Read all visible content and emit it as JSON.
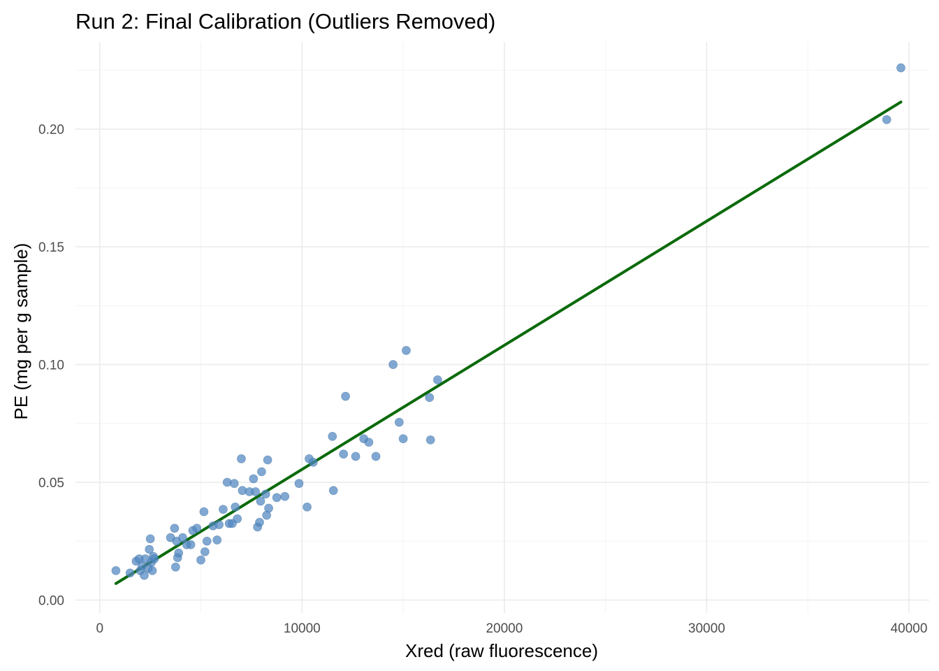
{
  "chart_data": {
    "type": "scatter",
    "title": "Run 2: Final Calibration (Outliers Removed)",
    "xlabel": "Xred (raw fluorescence)",
    "ylabel": "PE (mg per g sample)",
    "xlim": [
      -1200,
      41000
    ],
    "ylim": [
      -0.0055,
      0.237
    ],
    "x_ticks": [
      0,
      10000,
      20000,
      30000,
      40000
    ],
    "x_tick_labels": [
      "0",
      "10000",
      "20000",
      "30000",
      "40000"
    ],
    "y_ticks": [
      0.0,
      0.05,
      0.1,
      0.15,
      0.2
    ],
    "y_tick_labels": [
      "0.00",
      "0.05",
      "0.10",
      "0.15",
      "0.20"
    ],
    "grid": true,
    "point_color": "#4f86c0",
    "line_color": "#0b6a0b",
    "points": [
      [
        800,
        0.0125
      ],
      [
        1500,
        0.0115
      ],
      [
        1800,
        0.0165
      ],
      [
        1950,
        0.0175
      ],
      [
        2000,
        0.0125
      ],
      [
        2100,
        0.0145
      ],
      [
        2200,
        0.0105
      ],
      [
        2250,
        0.0175
      ],
      [
        2400,
        0.0135
      ],
      [
        2450,
        0.0215
      ],
      [
        2500,
        0.026
      ],
      [
        2550,
        0.016
      ],
      [
        2600,
        0.0125
      ],
      [
        2650,
        0.0185
      ],
      [
        2700,
        0.0175
      ],
      [
        3500,
        0.0265
      ],
      [
        3700,
        0.0305
      ],
      [
        3750,
        0.014
      ],
      [
        3800,
        0.025
      ],
      [
        3850,
        0.018
      ],
      [
        3900,
        0.02
      ],
      [
        4100,
        0.0265
      ],
      [
        4300,
        0.0235
      ],
      [
        4500,
        0.0235
      ],
      [
        4600,
        0.0295
      ],
      [
        4800,
        0.0305
      ],
      [
        5000,
        0.017
      ],
      [
        5150,
        0.0375
      ],
      [
        5200,
        0.0205
      ],
      [
        5300,
        0.025
      ],
      [
        5600,
        0.0315
      ],
      [
        5800,
        0.0255
      ],
      [
        5900,
        0.032
      ],
      [
        6100,
        0.0385
      ],
      [
        6300,
        0.05
      ],
      [
        6400,
        0.0325
      ],
      [
        6550,
        0.0325
      ],
      [
        6650,
        0.0495
      ],
      [
        6700,
        0.0395
      ],
      [
        6800,
        0.0345
      ],
      [
        7000,
        0.06
      ],
      [
        7050,
        0.0465
      ],
      [
        7400,
        0.046
      ],
      [
        7600,
        0.0515
      ],
      [
        7700,
        0.046
      ],
      [
        7800,
        0.031
      ],
      [
        7900,
        0.033
      ],
      [
        7950,
        0.042
      ],
      [
        8000,
        0.0545
      ],
      [
        8200,
        0.045
      ],
      [
        8250,
        0.036
      ],
      [
        8300,
        0.0595
      ],
      [
        8350,
        0.039
      ],
      [
        8750,
        0.0435
      ],
      [
        9150,
        0.044
      ],
      [
        9850,
        0.0495
      ],
      [
        10250,
        0.0395
      ],
      [
        10350,
        0.06
      ],
      [
        10550,
        0.0585
      ],
      [
        11500,
        0.0695
      ],
      [
        11550,
        0.0465
      ],
      [
        12050,
        0.062
      ],
      [
        12150,
        0.0865
      ],
      [
        12650,
        0.061
      ],
      [
        13050,
        0.0685
      ],
      [
        13300,
        0.067
      ],
      [
        13650,
        0.061
      ],
      [
        14500,
        0.1
      ],
      [
        14800,
        0.0755
      ],
      [
        15000,
        0.0685
      ],
      [
        15150,
        0.106
      ],
      [
        16300,
        0.086
      ],
      [
        16350,
        0.068
      ],
      [
        16700,
        0.0935
      ],
      [
        38900,
        0.204
      ],
      [
        39600,
        0.226
      ]
    ],
    "fit_line": {
      "type": "linear",
      "x": [
        800,
        39600
      ],
      "y": [
        0.007,
        0.2115
      ]
    }
  }
}
